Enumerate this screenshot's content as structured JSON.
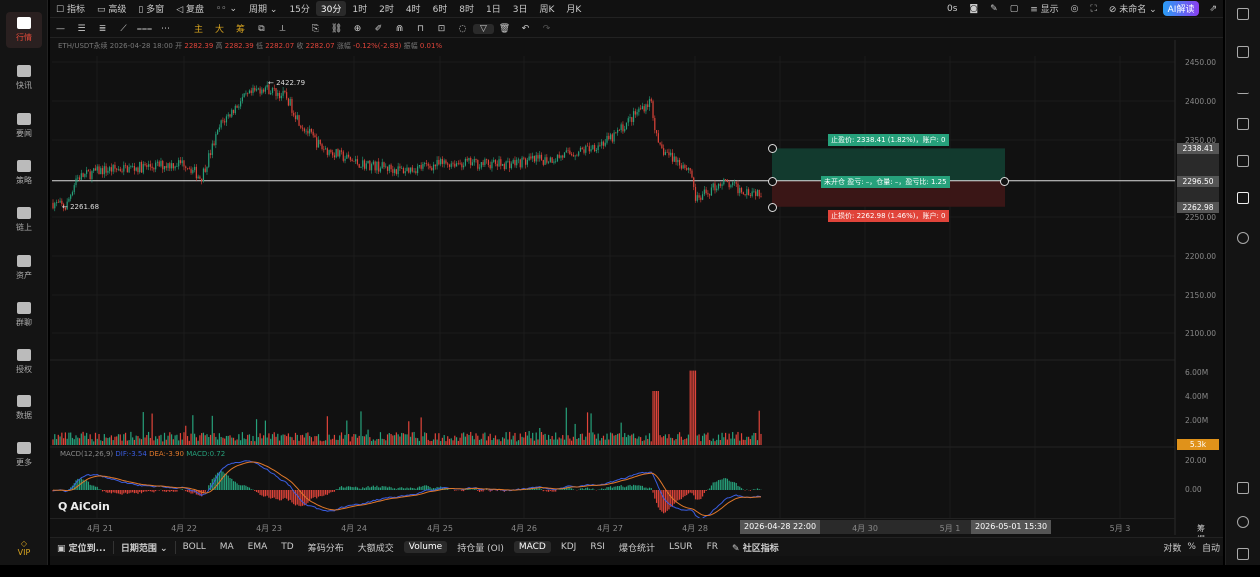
{
  "sidebar": {
    "items": [
      {
        "label": "行情",
        "active": true
      },
      {
        "label": "快讯"
      },
      {
        "label": "要闻"
      },
      {
        "label": "策略"
      },
      {
        "label": "链上"
      },
      {
        "label": "资产"
      },
      {
        "label": "群聊"
      },
      {
        "label": "授权"
      },
      {
        "label": "数据"
      },
      {
        "label": "更多"
      }
    ],
    "vip": "VIP"
  },
  "toolbar": {
    "indicators": "指标",
    "advanced": "高级",
    "multi": "多窗",
    "replay": "复盘",
    "period": "周期",
    "intervals": [
      "15分",
      "30分",
      "1时",
      "2时",
      "4时",
      "6时",
      "8时",
      "1日",
      "3日",
      "周K",
      "月K"
    ],
    "selected_interval": "30分",
    "countdown": "0s",
    "display": "显示",
    "layout_name": "未命名",
    "ai": "AI解读"
  },
  "drawing_tools": {
    "main": "主",
    "big": "大",
    "chips": "筹"
  },
  "info": {
    "symbol": "ETH/USDT永续",
    "time": "2026-04-28 18:00",
    "open_label": "开",
    "open": "2282.39",
    "high_label": "高",
    "high": "2282.39",
    "low_label": "低",
    "low": "2282.07",
    "close_label": "收",
    "close": "2282.07",
    "change_label": "涨幅",
    "change": "-0.12%(-2.83)",
    "amp_label": "振幅",
    "amp": "0.01%"
  },
  "price_axis": {
    "ticks": [
      "2450.00",
      "2400.00",
      "2350.00",
      "2250.00",
      "2200.00",
      "2150.00",
      "2100.00"
    ],
    "take_profit": "2338.41",
    "entry": "2296.50",
    "stop_loss": "2262.98",
    "colors": {
      "up": "#26a17b",
      "down": "#e0443a"
    }
  },
  "annotations": {
    "high": "← 2422.79",
    "low": "← 2261.68"
  },
  "order": {
    "take_profit_label": "止盈价: 2338.41 (1.82%)，账户: 0",
    "mid_label": "未开仓 盈亏: –，仓量: –，盈亏比: 1.25",
    "stop_label": "止损价: 2262.98 (1.46%)，账户: 0"
  },
  "volume_axis": {
    "ticks": [
      "6.00M",
      "4.00M",
      "2.00M"
    ],
    "last": "5.3k"
  },
  "macd": {
    "title": "MACD(12,26,9)",
    "dif": "DIF:-3.54",
    "dea": "DEA:-3.90",
    "macd": "MACD:0.72",
    "ticks": [
      "20.00",
      "0.00"
    ]
  },
  "watermark": "AiCoin",
  "chart_data": {
    "type": "candlestick",
    "price_waypoints": [
      [
        0,
        2268
      ],
      [
        13,
        2262
      ],
      [
        23,
        2300
      ],
      [
        48,
        2310
      ],
      [
        98,
        2315
      ],
      [
        132,
        2320
      ],
      [
        148,
        2300
      ],
      [
        168,
        2370
      ],
      [
        188,
        2400
      ],
      [
        210,
        2418
      ],
      [
        233,
        2405
      ],
      [
        248,
        2370
      ],
      [
        268,
        2340
      ],
      [
        303,
        2320
      ],
      [
        348,
        2310
      ],
      [
        398,
        2320
      ],
      [
        448,
        2318
      ],
      [
        498,
        2325
      ],
      [
        528,
        2335
      ],
      [
        558,
        2350
      ],
      [
        588,
        2390
      ],
      [
        598,
        2400
      ],
      [
        605,
        2340
      ],
      [
        638,
        2310
      ],
      [
        643,
        2270
      ],
      [
        668,
        2295
      ],
      [
        688,
        2285
      ],
      [
        708,
        2282
      ]
    ],
    "ylim": [
      2100,
      2450
    ]
  },
  "time_axis": {
    "labels": [
      "4月 21",
      "4月 22",
      "4月 23",
      "4月 24",
      "4月 25",
      "4月 26",
      "4月 27",
      "4月 28",
      "4月 30",
      "5月 1",
      "5月 3"
    ],
    "cursor_start": "2026-04-28 22:00",
    "cursor_end": "2026-05-01 15:30",
    "right": "筹 爆"
  },
  "bottom": {
    "locate": "定位到...",
    "date_range": "日期范围",
    "items": [
      "BOLL",
      "MA",
      "EMA",
      "TD",
      "筹码分布",
      "大额成交"
    ],
    "subs": [
      "Volume",
      "持仓量 (OI)",
      "MACD",
      "KDJ",
      "RSI",
      "爆仓统计",
      "LSUR",
      "FR"
    ],
    "community": "社区指标",
    "log": "对数",
    "pct": "%",
    "auto": "自动"
  }
}
